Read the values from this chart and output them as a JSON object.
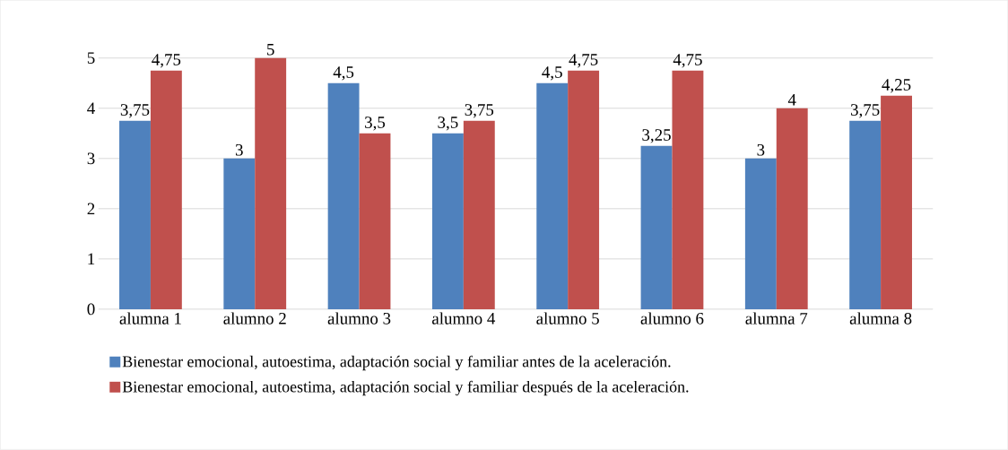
{
  "chart_data": {
    "type": "bar",
    "categories": [
      "alumna 1",
      "alumno 2",
      "alumno 3",
      "alumno 4",
      "alumno 5",
      "alumno 6",
      "alumna 7",
      "alumna 8"
    ],
    "series": [
      {
        "name": "Bienestar emocional, autoestima, adaptación social y familiar antes de la aceleración.",
        "color": "#4f81bd",
        "values": [
          3.75,
          3,
          4.5,
          3.5,
          4.5,
          3.25,
          3,
          3.75
        ],
        "value_labels": [
          "3,75",
          "3",
          "4,5",
          "3,5",
          "4,5",
          "3,25",
          "3",
          "3,75"
        ]
      },
      {
        "name": "Bienestar emocional, autoestima, adaptación social y familiar después de la aceleración.",
        "color": "#c0504d",
        "values": [
          4.75,
          5,
          3.5,
          3.75,
          4.75,
          4.75,
          4,
          4.25
        ],
        "value_labels": [
          "4,75",
          "5",
          "3,5",
          "3,75",
          "4,75",
          "4,75",
          "4",
          "4,25"
        ]
      }
    ],
    "ylim": [
      0,
      5
    ],
    "yticks": [
      0,
      1,
      2,
      3,
      4,
      5
    ],
    "grid": "y",
    "legend": "bottom"
  }
}
